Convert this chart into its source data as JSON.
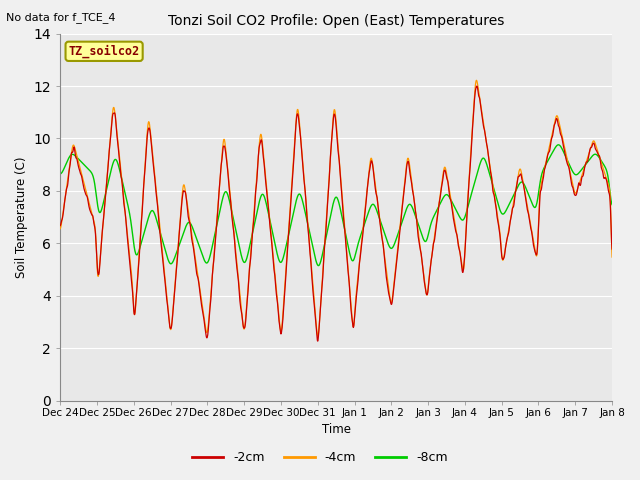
{
  "title": "Tonzi Soil CO2 Profile: Open (East) Temperatures",
  "subtitle": "No data for f_TCE_4",
  "ylabel": "Soil Temperature (C)",
  "xlabel": "Time",
  "box_label": "TZ_soilco2",
  "ylim": [
    0,
    14
  ],
  "yticks": [
    0,
    2,
    4,
    6,
    8,
    10,
    12,
    14
  ],
  "legend": [
    {
      "label": "-2cm",
      "color": "#cc0000"
    },
    {
      "label": "-4cm",
      "color": "#ff9900"
    },
    {
      "label": "-8cm",
      "color": "#00cc00"
    }
  ],
  "fig_bg": "#f0f0f0",
  "ax_bg": "#e8e8e8",
  "grid_color": "#ffffff",
  "tick_labels": [
    "Dec 24",
    "Dec 25",
    "Dec 26",
    "Dec 27",
    "Dec 28",
    "Dec 29",
    "Dec 30",
    "Dec 31",
    "Jan 1",
    "Jan 2",
    "Jan 3",
    "Jan 4",
    "Jan 5",
    "Jan 6",
    "Jan 7",
    "Jan 8"
  ],
  "n_days": 15
}
